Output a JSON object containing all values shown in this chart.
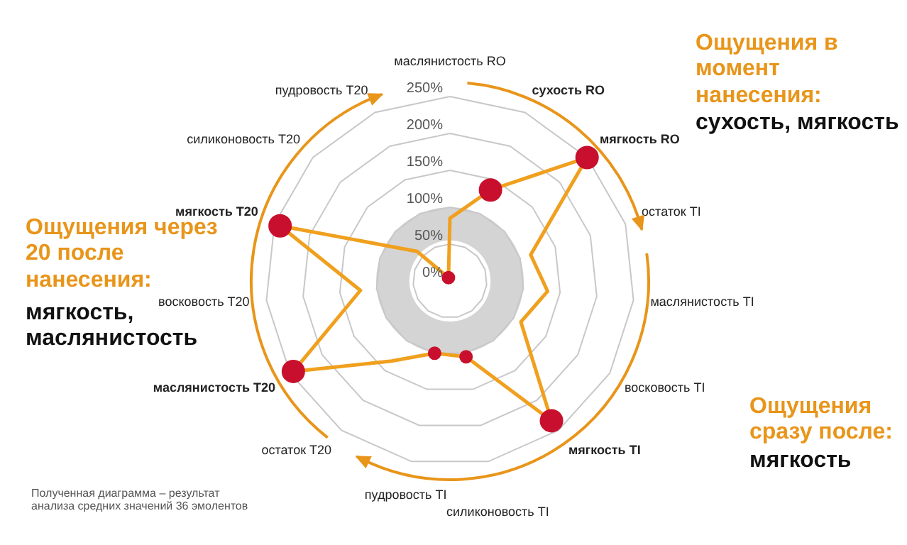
{
  "chart_data": {
    "type": "radar",
    "categories": [
      "маслянистость RO",
      "сухость RO",
      "мягкость RO",
      "остаток TI",
      "маслянистость TI",
      "восковость TI",
      "мягкость TI",
      "силиконовость TI",
      "пудровость TI",
      "остаток T20",
      "маслянистость T20",
      "восковость T20",
      "мягкость T20",
      "силиконовость T20",
      "пудровость T20"
    ],
    "series": [
      {
        "color": "#f0a01e",
        "values": [
          85,
          135,
          250,
          115,
          133,
          111,
          234,
          105,
          100,
          134,
          245,
          122,
          242,
          60,
          5
        ]
      }
    ],
    "ylim": [
      0,
      250
    ],
    "yticks": [
      {
        "value": 0,
        "label": "0%"
      },
      {
        "value": 50,
        "label": "50%"
      },
      {
        "value": 100,
        "label": "100%"
      },
      {
        "value": 150,
        "label": "150%"
      },
      {
        "value": 200,
        "label": "200%"
      },
      {
        "value": 250,
        "label": "250%"
      }
    ],
    "grid": true,
    "marker": "circle",
    "annotations": [
      "Ощущения в момент нанесения:",
      "сухость, мягкость",
      "Ощущения через 20 после нанесения:",
      "мягкость, маслянистость",
      "Ощущения сразу после:",
      "мягкость",
      "Полученная диаграмма – результат анализа средних значений 36 эмолентов"
    ]
  }
}
